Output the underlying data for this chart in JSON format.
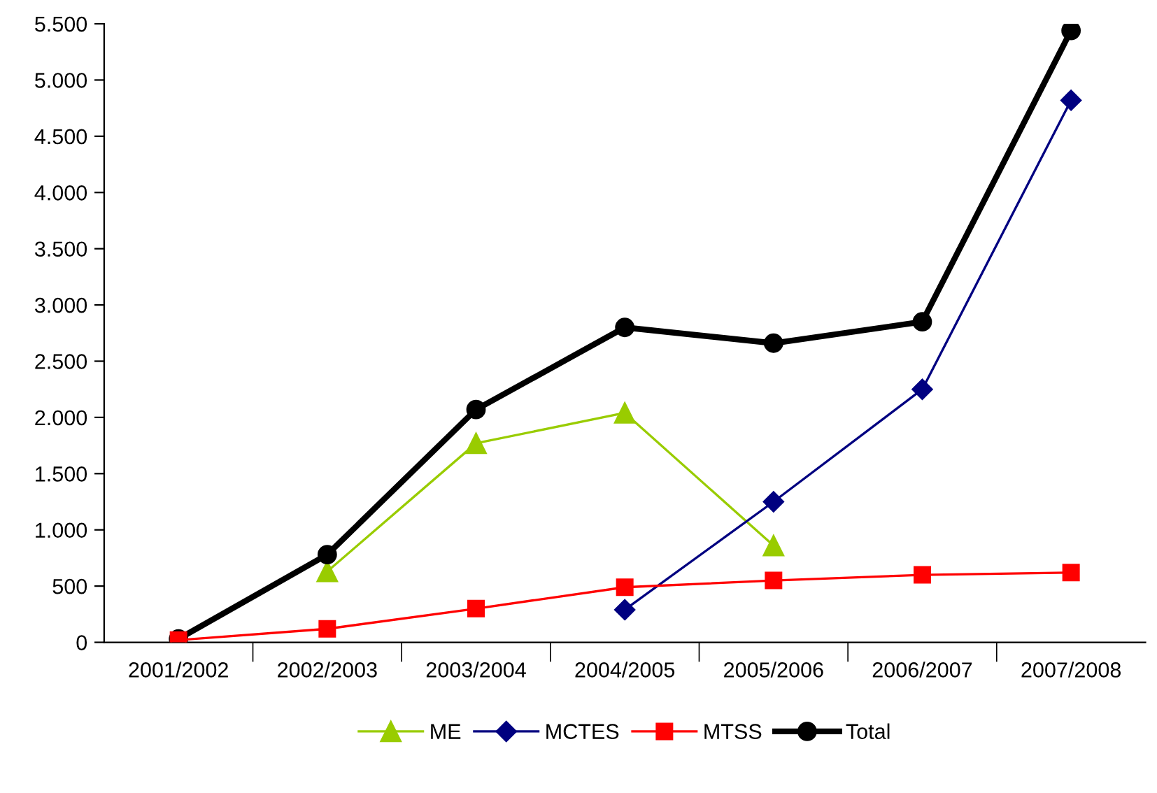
{
  "chart_data": {
    "type": "line",
    "categories": [
      "2001/2002",
      "2002/2003",
      "2003/2004",
      "2004/2005",
      "2005/2006",
      "2006/2007",
      "2007/2008"
    ],
    "series": [
      {
        "name": "ME",
        "color": "#99cc00",
        "marker": "triangle",
        "values": [
          null,
          630,
          1770,
          2040,
          860,
          null,
          null
        ]
      },
      {
        "name": "MCTES",
        "color": "#000080",
        "marker": "diamond",
        "values": [
          null,
          null,
          null,
          290,
          1250,
          2250,
          4820
        ]
      },
      {
        "name": "MTSS",
        "color": "#ff0000",
        "marker": "square",
        "values": [
          20,
          120,
          300,
          490,
          550,
          600,
          620
        ]
      },
      {
        "name": "Total",
        "color": "#000000",
        "marker": "circle",
        "values": [
          30,
          780,
          2070,
          2800,
          2660,
          2850,
          5440
        ]
      }
    ],
    "ylim": [
      0,
      5500
    ],
    "yticks": [
      0,
      500,
      {
        "value": 1000,
        "label": "1.000"
      },
      {
        "value": 1500,
        "label": "1.500"
      },
      {
        "value": 2000,
        "label": "2.000"
      },
      {
        "value": 2500,
        "label": "2.500"
      },
      {
        "value": 3000,
        "label": "3.000"
      },
      {
        "value": 3500,
        "label": "3.500"
      },
      {
        "value": 4000,
        "label": "4.000"
      },
      {
        "value": 4500,
        "label": "4.500"
      },
      {
        "value": 5000,
        "label": "5.000"
      },
      {
        "value": 5500,
        "label": "5.500"
      }
    ],
    "grid": false,
    "legend": "bottom",
    "line_style": "solid"
  }
}
